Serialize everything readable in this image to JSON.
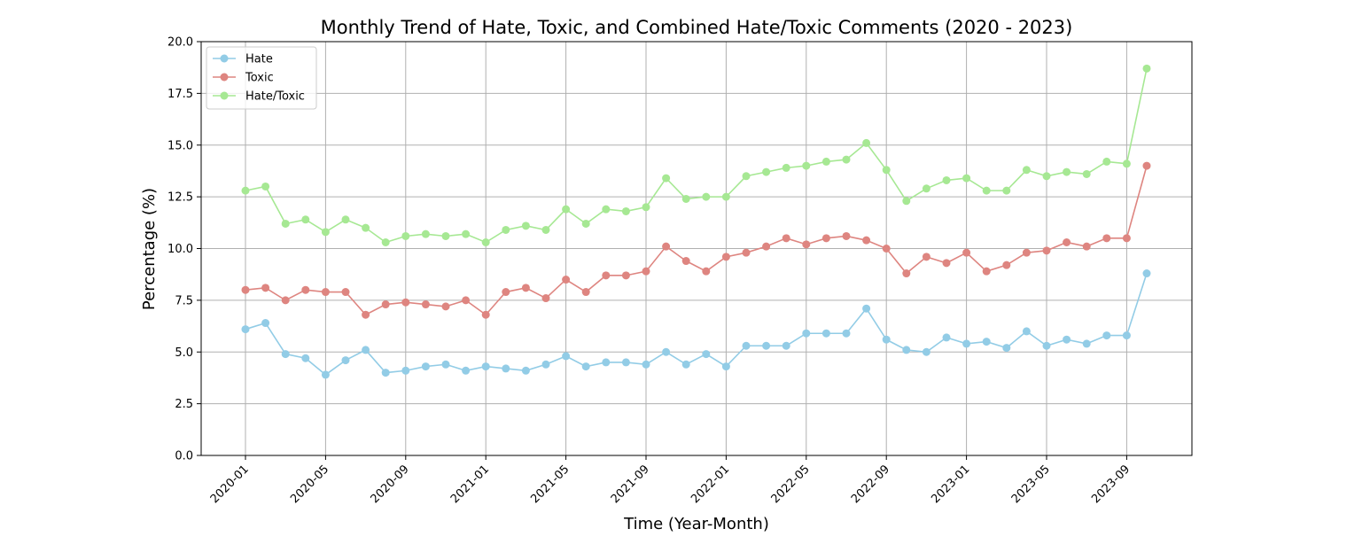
{
  "chart_data": {
    "type": "line",
    "title": "Monthly Trend of Hate, Toxic, and Combined Hate/Toxic Comments (2020 - 2023)",
    "xlabel": "Time (Year-Month)",
    "ylabel": "Percentage (%)",
    "ylim": [
      0,
      20
    ],
    "yticks": [
      "0.0",
      "2.5",
      "5.0",
      "7.5",
      "10.0",
      "12.5",
      "15.0",
      "17.5",
      "20.0"
    ],
    "xtick_labels": [
      "2020-01",
      "2020-05",
      "2020-09",
      "2021-01",
      "2021-05",
      "2021-09",
      "2022-01",
      "2022-05",
      "2022-09",
      "2023-01",
      "2023-05",
      "2023-09"
    ],
    "x": [
      "2020-01",
      "2020-02",
      "2020-03",
      "2020-04",
      "2020-05",
      "2020-06",
      "2020-07",
      "2020-08",
      "2020-09",
      "2020-10",
      "2020-11",
      "2020-12",
      "2021-01",
      "2021-02",
      "2021-03",
      "2021-04",
      "2021-05",
      "2021-06",
      "2021-07",
      "2021-08",
      "2021-09",
      "2021-10",
      "2021-11",
      "2021-12",
      "2022-01",
      "2022-02",
      "2022-03",
      "2022-04",
      "2022-05",
      "2022-06",
      "2022-07",
      "2022-08",
      "2022-09",
      "2022-10",
      "2022-11",
      "2022-12",
      "2023-01",
      "2023-02",
      "2023-03",
      "2023-04",
      "2023-05",
      "2023-06",
      "2023-07",
      "2023-08",
      "2023-09",
      "2023-10"
    ],
    "grid": true,
    "legend_position": "top-left",
    "series": [
      {
        "name": "Hate",
        "color": "#92cce6",
        "values": [
          6.1,
          6.4,
          4.9,
          4.7,
          3.9,
          4.6,
          5.1,
          4.0,
          4.1,
          4.3,
          4.4,
          4.1,
          4.3,
          4.2,
          4.1,
          4.4,
          4.8,
          4.3,
          4.5,
          4.5,
          4.4,
          5.0,
          4.4,
          4.9,
          4.3,
          5.3,
          5.3,
          5.3,
          5.9,
          5.9,
          5.9,
          7.1,
          5.6,
          5.1,
          5.0,
          5.7,
          5.4,
          5.5,
          5.2,
          6.0,
          5.3,
          5.6,
          5.4,
          5.8,
          5.8,
          8.8
        ]
      },
      {
        "name": "Toxic",
        "color": "#de8580",
        "values": [
          8.0,
          8.1,
          7.5,
          8.0,
          7.9,
          7.9,
          6.8,
          7.3,
          7.4,
          7.3,
          7.2,
          7.5,
          6.8,
          7.9,
          8.1,
          7.6,
          8.5,
          7.9,
          8.7,
          8.7,
          8.9,
          10.1,
          9.4,
          8.9,
          9.6,
          9.8,
          10.1,
          10.5,
          10.2,
          10.5,
          10.6,
          10.4,
          10.0,
          8.8,
          9.6,
          9.3,
          9.8,
          8.9,
          9.2,
          9.8,
          9.9,
          10.3,
          10.1,
          10.5,
          10.5,
          14.0
        ]
      },
      {
        "name": "Hate/Toxic",
        "color": "#a6e893",
        "values": [
          12.8,
          13.0,
          11.2,
          11.4,
          10.8,
          11.4,
          11.0,
          10.3,
          10.6,
          10.7,
          10.6,
          10.7,
          10.3,
          10.9,
          11.1,
          10.9,
          11.9,
          11.2,
          11.9,
          11.8,
          12.0,
          13.4,
          12.4,
          12.5,
          12.5,
          13.5,
          13.7,
          13.9,
          14.0,
          14.2,
          14.3,
          15.1,
          13.8,
          12.3,
          12.9,
          13.3,
          13.4,
          12.8,
          12.8,
          13.8,
          13.5,
          13.7,
          13.6,
          14.2,
          14.1,
          18.7
        ]
      }
    ]
  }
}
